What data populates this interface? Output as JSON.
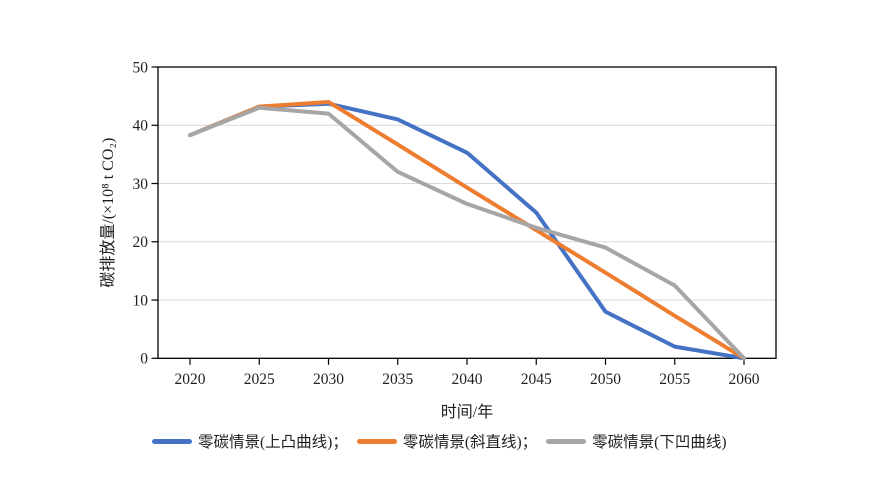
{
  "page": {
    "background": "#ffffff"
  },
  "chart_data": {
    "type": "line",
    "title": "",
    "xlabel": "时间/年",
    "ylabel": "碳排放量/(×10⁸ t CO₂)",
    "x": [
      2020,
      2025,
      2030,
      2035,
      2040,
      2045,
      2050,
      2055,
      2060
    ],
    "ylim": [
      0,
      50
    ],
    "ytick_step": 10,
    "grid": "horizontal",
    "grid_color": "#d9d9d9",
    "axis_color": "#000000",
    "text_color": "#1f1f1f",
    "legend_position": "bottom",
    "series": [
      {
        "name": "零碳情景(上凸曲线)",
        "color": "#4472C4",
        "values": [
          38.3,
          43.2,
          43.7,
          41.0,
          35.3,
          25.0,
          8.0,
          2.0,
          0.0
        ]
      },
      {
        "name": "零碳情景(斜直线)",
        "color": "#ED7D31",
        "values": [
          38.3,
          43.2,
          44.0,
          36.7,
          29.3,
          22.0,
          14.7,
          7.3,
          0.0
        ]
      },
      {
        "name": "零碳情景(下凹曲线)",
        "color": "#A6A6A6",
        "values": [
          38.3,
          43.0,
          42.0,
          32.0,
          26.5,
          22.4,
          19.0,
          12.5,
          0.0
        ]
      }
    ],
    "legend": {
      "items": [
        "零碳情景(上凸曲线)；",
        "零碳情景(斜直线)；",
        "零碳情景(下凹曲线)"
      ]
    }
  }
}
